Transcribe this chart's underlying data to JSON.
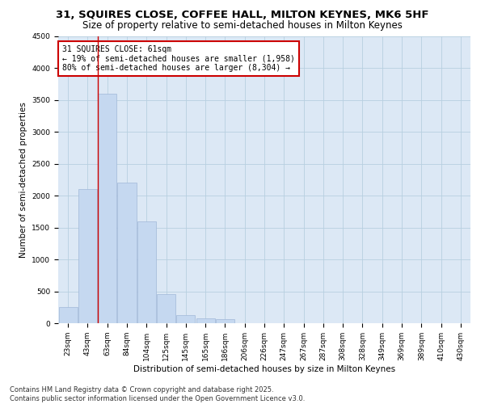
{
  "title_line1": "31, SQUIRES CLOSE, COFFEE HALL, MILTON KEYNES, MK6 5HF",
  "title_line2": "Size of property relative to semi-detached houses in Milton Keynes",
  "xlabel": "Distribution of semi-detached houses by size in Milton Keynes",
  "ylabel": "Number of semi-detached properties",
  "footer_line1": "Contains HM Land Registry data © Crown copyright and database right 2025.",
  "footer_line2": "Contains public sector information licensed under the Open Government Licence v3.0.",
  "annotation_title": "31 SQUIRES CLOSE: 61sqm",
  "annotation_line1": "← 19% of semi-detached houses are smaller (1,958)",
  "annotation_line2": "80% of semi-detached houses are larger (8,304) →",
  "categories": [
    "23sqm",
    "43sqm",
    "63sqm",
    "84sqm",
    "104sqm",
    "125sqm",
    "145sqm",
    "165sqm",
    "186sqm",
    "206sqm",
    "226sqm",
    "247sqm",
    "267sqm",
    "287sqm",
    "308sqm",
    "328sqm",
    "349sqm",
    "369sqm",
    "389sqm",
    "410sqm",
    "430sqm"
  ],
  "values": [
    250,
    2100,
    3600,
    2200,
    1600,
    460,
    130,
    80,
    60,
    5,
    3,
    1,
    0,
    0,
    0,
    0,
    0,
    0,
    0,
    0,
    0
  ],
  "bar_color": "#c5d8f0",
  "bar_edge_color": "#a0b8d8",
  "highlight_line_color": "#cc0000",
  "ylim": [
    0,
    4500
  ],
  "yticks": [
    0,
    500,
    1000,
    1500,
    2000,
    2500,
    3000,
    3500,
    4000,
    4500
  ],
  "background_color": "#ffffff",
  "plot_bg_color": "#dce8f5",
  "grid_color": "#b8cfe0",
  "annotation_box_color": "#ffffff",
  "annotation_box_edge": "#cc0000",
  "title_fontsize": 9.5,
  "subtitle_fontsize": 8.5,
  "axis_label_fontsize": 7.5,
  "tick_fontsize": 6.5,
  "annotation_fontsize": 7,
  "footer_fontsize": 6
}
